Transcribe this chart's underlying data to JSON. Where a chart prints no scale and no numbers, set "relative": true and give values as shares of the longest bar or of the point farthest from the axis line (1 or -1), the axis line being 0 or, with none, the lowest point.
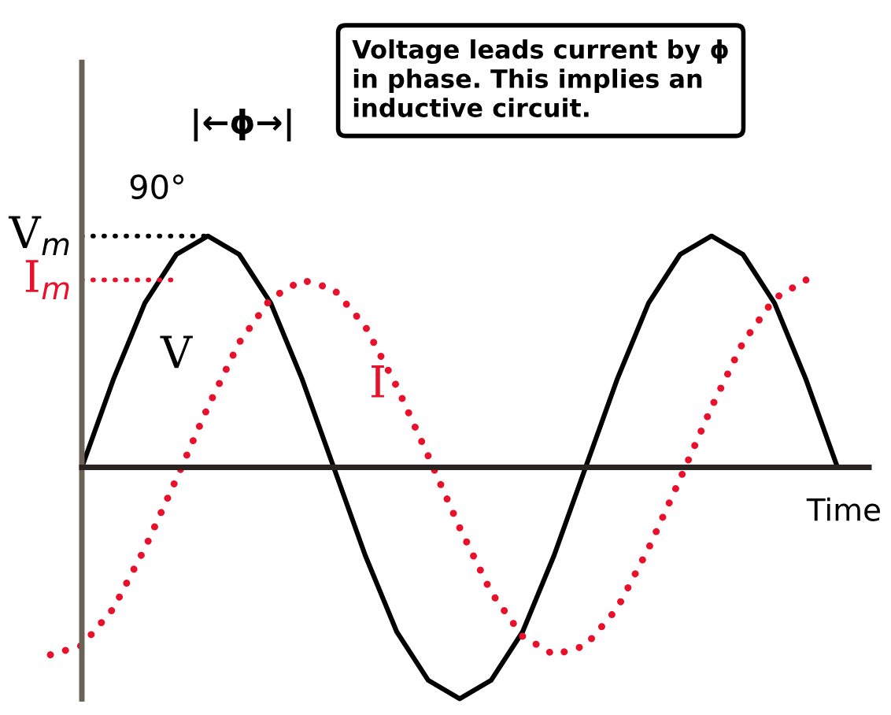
{
  "chart_data": {
    "type": "line",
    "relative": true,
    "xlabel": "Time",
    "marker": "none",
    "categories": [
      null,
      null,
      null,
      null,
      null,
      null,
      null,
      null,
      null,
      null,
      null,
      null,
      null,
      null,
      null,
      null,
      null,
      null,
      null,
      null,
      null,
      null,
      null,
      null,
      null,
      null,
      null
    ],
    "series": [
      {
        "name": "V",
        "color": "#000000",
        "line_style": "solid",
        "values": [
          null,
          0,
          0.38,
          0.71,
          0.92,
          1,
          0.92,
          0.71,
          0.38,
          0,
          -0.38,
          -0.71,
          -0.92,
          -1,
          -0.92,
          -0.71,
          -0.38,
          0,
          0.38,
          0.71,
          0.92,
          1,
          0.92,
          0.71,
          0.38,
          0,
          null
        ]
      },
      {
        "name": "I",
        "color": "#e8102a",
        "line_style": "dotted",
        "values": [
          -0.81,
          -0.77,
          -0.61,
          -0.35,
          -0.05,
          0.26,
          0.54,
          0.73,
          0.81,
          0.77,
          0.61,
          0.35,
          0.05,
          -0.26,
          -0.54,
          -0.73,
          -0.81,
          -0.77,
          -0.61,
          -0.35,
          -0.05,
          0.26,
          0.54,
          0.73,
          0.81,
          null,
          null
        ]
      }
    ],
    "ref_lines": [
      {
        "axis": "y",
        "value": 1,
        "label": "V$_{m}$",
        "color": "#000000",
        "line_style": "dotted"
      },
      {
        "axis": "y",
        "value": 0.81,
        "label": "I$_{m}$",
        "color": "#e8102a",
        "line_style": "dotted"
      }
    ],
    "annotations": [
      "Voltage leads current by ϕ\nin phase. This implies an\ninductive circuit.",
      "90°",
      "|←ϕ→|"
    ]
  }
}
